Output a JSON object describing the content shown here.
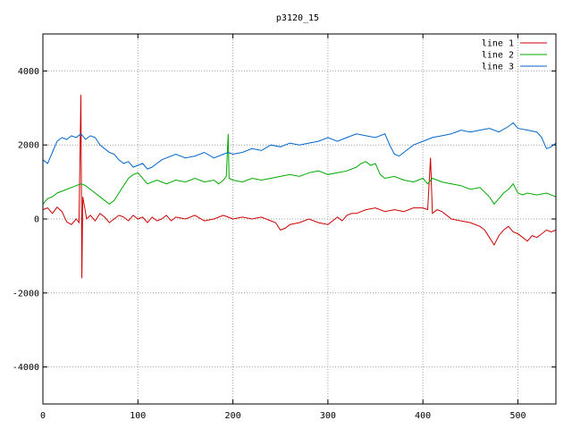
{
  "chart_data": {
    "type": "line",
    "title": "p3120_15",
    "xlabel": "",
    "ylabel": "",
    "xlim": [
      0,
      540
    ],
    "ylim": [
      -5000,
      5000
    ],
    "xticks": [
      0,
      100,
      200,
      300,
      400,
      500
    ],
    "yticks": [
      -4000,
      -2000,
      0,
      2000,
      4000
    ],
    "grid": true,
    "legend_position": "top-right",
    "series": [
      {
        "name": "line 1",
        "color": "#cc0000",
        "points": [
          [
            0,
            250
          ],
          [
            5,
            300
          ],
          [
            10,
            150
          ],
          [
            15,
            320
          ],
          [
            20,
            200
          ],
          [
            25,
            -80
          ],
          [
            30,
            -150
          ],
          [
            35,
            0
          ],
          [
            38,
            -100
          ],
          [
            40,
            3350
          ],
          [
            41,
            -1600
          ],
          [
            42,
            600
          ],
          [
            44,
            300
          ],
          [
            46,
            0
          ],
          [
            50,
            100
          ],
          [
            55,
            -50
          ],
          [
            60,
            150
          ],
          [
            65,
            50
          ],
          [
            70,
            -100
          ],
          [
            75,
            0
          ],
          [
            80,
            100
          ],
          [
            85,
            50
          ],
          [
            90,
            -50
          ],
          [
            95,
            100
          ],
          [
            100,
            0
          ],
          [
            105,
            50
          ],
          [
            110,
            -100
          ],
          [
            115,
            50
          ],
          [
            120,
            -50
          ],
          [
            125,
            0
          ],
          [
            130,
            100
          ],
          [
            135,
            -50
          ],
          [
            140,
            50
          ],
          [
            150,
            0
          ],
          [
            160,
            100
          ],
          [
            170,
            -50
          ],
          [
            180,
            0
          ],
          [
            190,
            100
          ],
          [
            200,
            0
          ],
          [
            210,
            50
          ],
          [
            220,
            0
          ],
          [
            230,
            50
          ],
          [
            240,
            -50
          ],
          [
            245,
            -100
          ],
          [
            250,
            -300
          ],
          [
            255,
            -250
          ],
          [
            260,
            -150
          ],
          [
            270,
            -100
          ],
          [
            280,
            0
          ],
          [
            290,
            -100
          ],
          [
            300,
            -150
          ],
          [
            305,
            -50
          ],
          [
            310,
            50
          ],
          [
            315,
            -50
          ],
          [
            320,
            100
          ],
          [
            325,
            150
          ],
          [
            330,
            150
          ],
          [
            340,
            250
          ],
          [
            350,
            300
          ],
          [
            360,
            200
          ],
          [
            370,
            250
          ],
          [
            380,
            200
          ],
          [
            390,
            300
          ],
          [
            400,
            300
          ],
          [
            405,
            250
          ],
          [
            408,
            1650
          ],
          [
            410,
            150
          ],
          [
            415,
            250
          ],
          [
            420,
            200
          ],
          [
            430,
            0
          ],
          [
            440,
            -50
          ],
          [
            450,
            -100
          ],
          [
            460,
            -200
          ],
          [
            465,
            -300
          ],
          [
            470,
            -500
          ],
          [
            475,
            -700
          ],
          [
            480,
            -450
          ],
          [
            485,
            -300
          ],
          [
            490,
            -200
          ],
          [
            495,
            -350
          ],
          [
            500,
            -400
          ],
          [
            505,
            -500
          ],
          [
            510,
            -600
          ],
          [
            515,
            -450
          ],
          [
            520,
            -500
          ],
          [
            525,
            -400
          ],
          [
            530,
            -300
          ],
          [
            535,
            -350
          ],
          [
            540,
            -300
          ]
        ]
      },
      {
        "name": "line 2",
        "color": "#00aa00",
        "points": [
          [
            0,
            400
          ],
          [
            5,
            550
          ],
          [
            10,
            600
          ],
          [
            15,
            700
          ],
          [
            20,
            750
          ],
          [
            25,
            800
          ],
          [
            30,
            850
          ],
          [
            35,
            900
          ],
          [
            40,
            950
          ],
          [
            45,
            900
          ],
          [
            50,
            800
          ],
          [
            55,
            700
          ],
          [
            60,
            600
          ],
          [
            65,
            500
          ],
          [
            70,
            400
          ],
          [
            75,
            500
          ],
          [
            80,
            700
          ],
          [
            85,
            900
          ],
          [
            90,
            1100
          ],
          [
            95,
            1200
          ],
          [
            100,
            1250
          ],
          [
            105,
            1100
          ],
          [
            110,
            950
          ],
          [
            115,
            1000
          ],
          [
            120,
            1050
          ],
          [
            125,
            1000
          ],
          [
            130,
            950
          ],
          [
            140,
            1050
          ],
          [
            150,
            1000
          ],
          [
            160,
            1100
          ],
          [
            170,
            1000
          ],
          [
            180,
            1050
          ],
          [
            185,
            950
          ],
          [
            190,
            1050
          ],
          [
            193,
            1150
          ],
          [
            195,
            2300
          ],
          [
            196,
            1100
          ],
          [
            200,
            1050
          ],
          [
            210,
            1000
          ],
          [
            220,
            1100
          ],
          [
            230,
            1050
          ],
          [
            240,
            1100
          ],
          [
            250,
            1150
          ],
          [
            260,
            1200
          ],
          [
            270,
            1150
          ],
          [
            280,
            1250
          ],
          [
            290,
            1300
          ],
          [
            300,
            1200
          ],
          [
            310,
            1250
          ],
          [
            320,
            1300
          ],
          [
            330,
            1400
          ],
          [
            335,
            1500
          ],
          [
            340,
            1550
          ],
          [
            345,
            1450
          ],
          [
            350,
            1500
          ],
          [
            355,
            1200
          ],
          [
            360,
            1100
          ],
          [
            370,
            1150
          ],
          [
            380,
            1050
          ],
          [
            390,
            1000
          ],
          [
            400,
            1100
          ],
          [
            405,
            950
          ],
          [
            410,
            1100
          ],
          [
            415,
            1050
          ],
          [
            420,
            1000
          ],
          [
            430,
            950
          ],
          [
            440,
            900
          ],
          [
            450,
            800
          ],
          [
            460,
            850
          ],
          [
            470,
            600
          ],
          [
            475,
            400
          ],
          [
            480,
            550
          ],
          [
            485,
            700
          ],
          [
            490,
            800
          ],
          [
            495,
            950
          ],
          [
            500,
            700
          ],
          [
            505,
            650
          ],
          [
            510,
            700
          ],
          [
            520,
            650
          ],
          [
            530,
            700
          ],
          [
            540,
            600
          ]
        ]
      },
      {
        "name": "line 3",
        "color": "#0066cc",
        "points": [
          [
            0,
            1600
          ],
          [
            5,
            1500
          ],
          [
            10,
            1800
          ],
          [
            15,
            2100
          ],
          [
            20,
            2200
          ],
          [
            25,
            2150
          ],
          [
            30,
            2250
          ],
          [
            35,
            2200
          ],
          [
            40,
            2300
          ],
          [
            45,
            2150
          ],
          [
            50,
            2250
          ],
          [
            55,
            2200
          ],
          [
            60,
            2000
          ],
          [
            65,
            1900
          ],
          [
            70,
            1800
          ],
          [
            75,
            1750
          ],
          [
            80,
            1600
          ],
          [
            85,
            1500
          ],
          [
            90,
            1550
          ],
          [
            95,
            1400
          ],
          [
            100,
            1450
          ],
          [
            105,
            1500
          ],
          [
            110,
            1350
          ],
          [
            115,
            1400
          ],
          [
            120,
            1500
          ],
          [
            125,
            1600
          ],
          [
            130,
            1650
          ],
          [
            140,
            1750
          ],
          [
            150,
            1650
          ],
          [
            160,
            1700
          ],
          [
            170,
            1800
          ],
          [
            180,
            1650
          ],
          [
            190,
            1750
          ],
          [
            195,
            1800
          ],
          [
            200,
            1750
          ],
          [
            210,
            1800
          ],
          [
            220,
            1900
          ],
          [
            230,
            1850
          ],
          [
            240,
            2000
          ],
          [
            250,
            1950
          ],
          [
            260,
            2050
          ],
          [
            270,
            2000
          ],
          [
            280,
            2050
          ],
          [
            290,
            2100
          ],
          [
            300,
            2200
          ],
          [
            310,
            2100
          ],
          [
            320,
            2200
          ],
          [
            330,
            2300
          ],
          [
            340,
            2250
          ],
          [
            350,
            2200
          ],
          [
            360,
            2300
          ],
          [
            365,
            2000
          ],
          [
            370,
            1750
          ],
          [
            375,
            1700
          ],
          [
            380,
            1800
          ],
          [
            390,
            2000
          ],
          [
            400,
            2100
          ],
          [
            410,
            2200
          ],
          [
            420,
            2250
          ],
          [
            430,
            2300
          ],
          [
            440,
            2400
          ],
          [
            450,
            2350
          ],
          [
            460,
            2400
          ],
          [
            470,
            2450
          ],
          [
            480,
            2350
          ],
          [
            490,
            2500
          ],
          [
            495,
            2600
          ],
          [
            500,
            2450
          ],
          [
            510,
            2400
          ],
          [
            520,
            2350
          ],
          [
            525,
            2200
          ],
          [
            530,
            1900
          ],
          [
            535,
            1950
          ],
          [
            540,
            2050
          ]
        ]
      }
    ]
  }
}
